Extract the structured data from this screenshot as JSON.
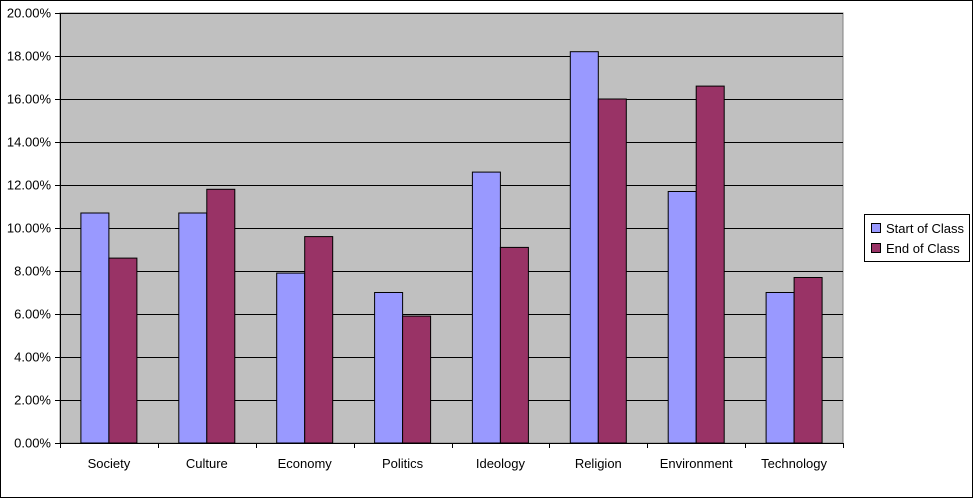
{
  "chart_data": {
    "type": "bar",
    "categories": [
      "Society",
      "Culture",
      "Economy",
      "Politics",
      "Ideology",
      "Religion",
      "Environment",
      "Technology"
    ],
    "series": [
      {
        "name": "Start of Class",
        "color": "#9999ff",
        "values": [
          0.107,
          0.107,
          0.079,
          0.07,
          0.126,
          0.182,
          0.117,
          0.07
        ]
      },
      {
        "name": "End of Class",
        "color": "#993366",
        "values": [
          0.086,
          0.118,
          0.096,
          0.059,
          0.091,
          0.16,
          0.166,
          0.077
        ]
      }
    ],
    "ylim": [
      0,
      0.2
    ],
    "yticks": [
      "0.00%",
      "2.00%",
      "4.00%",
      "6.00%",
      "8.00%",
      "10.00%",
      "12.00%",
      "14.00%",
      "16.00%",
      "18.00%",
      "20.00%"
    ],
    "plot_background": "#c0c0c0",
    "grid": true,
    "legend_position": "right"
  }
}
